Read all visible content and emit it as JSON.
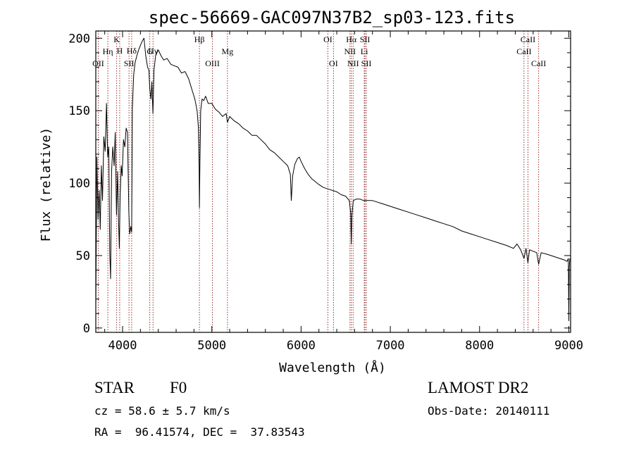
{
  "title": "spec-56669-GAC097N37B2_sp03-123.fits",
  "chart_data": {
    "type": "line",
    "xlabel": "Wavelength (Å)",
    "ylabel": "Flux (relative)",
    "xlim": [
      3700,
      9020
    ],
    "ylim": [
      -3,
      205
    ],
    "x_ticks": [
      4000,
      5000,
      6000,
      7000,
      8000,
      9000
    ],
    "y_ticks": [
      0,
      50,
      100,
      150,
      200
    ],
    "grid": false,
    "series": [
      {
        "points": [
          [
            3700,
            15
          ],
          [
            3712,
            118
          ],
          [
            3725,
            75
          ],
          [
            3738,
            95
          ],
          [
            3750,
            68
          ],
          [
            3762,
            112
          ],
          [
            3775,
            88
          ],
          [
            3790,
            132
          ],
          [
            3805,
            122
          ],
          [
            3820,
            155
          ],
          [
            3833,
            118
          ],
          [
            3845,
            125
          ],
          [
            3856,
            52
          ],
          [
            3866,
            34
          ],
          [
            3877,
            108
          ],
          [
            3890,
            125
          ],
          [
            3905,
            112
          ],
          [
            3918,
            135
          ],
          [
            3932,
            78
          ],
          [
            3945,
            108
          ],
          [
            3955,
            74
          ],
          [
            3964,
            55
          ],
          [
            3972,
            90
          ],
          [
            3985,
            112
          ],
          [
            3995,
            105
          ],
          [
            4010,
            130
          ],
          [
            4025,
            125
          ],
          [
            4040,
            138
          ],
          [
            4055,
            135
          ],
          [
            4070,
            80
          ],
          [
            4080,
            65
          ],
          [
            4092,
            70
          ],
          [
            4102,
            66
          ],
          [
            4110,
            152
          ],
          [
            4125,
            175
          ],
          [
            4140,
            183
          ],
          [
            4160,
            188
          ],
          [
            4180,
            192
          ],
          [
            4200,
            195
          ],
          [
            4220,
            198
          ],
          [
            4240,
            200
          ],
          [
            4260,
            188
          ],
          [
            4280,
            180
          ],
          [
            4295,
            178
          ],
          [
            4305,
            165
          ],
          [
            4318,
            158
          ],
          [
            4328,
            170
          ],
          [
            4340,
            148
          ],
          [
            4352,
            178
          ],
          [
            4370,
            188
          ],
          [
            4400,
            192
          ],
          [
            4430,
            188
          ],
          [
            4460,
            185
          ],
          [
            4500,
            186
          ],
          [
            4540,
            182
          ],
          [
            4580,
            181
          ],
          [
            4620,
            180
          ],
          [
            4660,
            176
          ],
          [
            4700,
            177
          ],
          [
            4740,
            172
          ],
          [
            4780,
            164
          ],
          [
            4810,
            158
          ],
          [
            4835,
            150
          ],
          [
            4850,
            138
          ],
          [
            4858,
            110
          ],
          [
            4861,
            83
          ],
          [
            4866,
            110
          ],
          [
            4875,
            150
          ],
          [
            4890,
            158
          ],
          [
            4910,
            157
          ],
          [
            4930,
            160
          ],
          [
            4960,
            155
          ],
          [
            5000,
            155
          ],
          [
            5040,
            151
          ],
          [
            5080,
            149
          ],
          [
            5120,
            146
          ],
          [
            5160,
            148
          ],
          [
            5175,
            142
          ],
          [
            5200,
            146
          ],
          [
            5250,
            143
          ],
          [
            5300,
            141
          ],
          [
            5350,
            138
          ],
          [
            5400,
            136
          ],
          [
            5450,
            133
          ],
          [
            5500,
            133
          ],
          [
            5550,
            130
          ],
          [
            5600,
            127
          ],
          [
            5650,
            123
          ],
          [
            5700,
            121
          ],
          [
            5750,
            118
          ],
          [
            5800,
            115
          ],
          [
            5850,
            112
          ],
          [
            5880,
            106
          ],
          [
            5890,
            88
          ],
          [
            5896,
            94
          ],
          [
            5905,
            105
          ],
          [
            5930,
            113
          ],
          [
            5960,
            117
          ],
          [
            5980,
            118
          ],
          [
            6000,
            115
          ],
          [
            6040,
            110
          ],
          [
            6080,
            106
          ],
          [
            6120,
            103
          ],
          [
            6160,
            101
          ],
          [
            6200,
            99
          ],
          [
            6250,
            97
          ],
          [
            6300,
            96
          ],
          [
            6350,
            95
          ],
          [
            6400,
            94
          ],
          [
            6450,
            92
          ],
          [
            6500,
            91
          ],
          [
            6540,
            88
          ],
          [
            6555,
            80
          ],
          [
            6563,
            58
          ],
          [
            6570,
            78
          ],
          [
            6585,
            88
          ],
          [
            6620,
            89
          ],
          [
            6660,
            89
          ],
          [
            6700,
            88
          ],
          [
            6750,
            88
          ],
          [
            6800,
            88
          ],
          [
            6850,
            87
          ],
          [
            6900,
            86
          ],
          [
            6950,
            85
          ],
          [
            7000,
            84
          ],
          [
            7100,
            82
          ],
          [
            7200,
            80
          ],
          [
            7300,
            78
          ],
          [
            7400,
            76
          ],
          [
            7500,
            74
          ],
          [
            7600,
            72
          ],
          [
            7700,
            70
          ],
          [
            7800,
            67
          ],
          [
            7900,
            65
          ],
          [
            8000,
            63
          ],
          [
            8100,
            61
          ],
          [
            8200,
            59
          ],
          [
            8300,
            57
          ],
          [
            8380,
            55
          ],
          [
            8420,
            58
          ],
          [
            8460,
            54
          ],
          [
            8498,
            48
          ],
          [
            8520,
            55
          ],
          [
            8542,
            45
          ],
          [
            8560,
            54
          ],
          [
            8600,
            53
          ],
          [
            8640,
            52
          ],
          [
            8662,
            44
          ],
          [
            8690,
            52
          ],
          [
            8750,
            51
          ],
          [
            8800,
            50
          ],
          [
            8850,
            49
          ],
          [
            8900,
            48
          ],
          [
            8950,
            47
          ],
          [
            8980,
            46
          ],
          [
            8995,
            48
          ],
          [
            9000,
            5
          ],
          [
            9005,
            42
          ],
          [
            9012,
            48
          ]
        ]
      }
    ],
    "line_markers": [
      {
        "label": "OII",
        "wl": 3727,
        "tier": 3
      },
      {
        "label": "Hη",
        "wl": 3835,
        "tier": 2
      },
      {
        "label": "K",
        "wl": 3934,
        "tier": 1
      },
      {
        "label": "H",
        "wl": 3968,
        "tier": 0
      },
      {
        "label": "SII",
        "wl": 4072,
        "tier": 3
      },
      {
        "label": "Hδ",
        "wl": 4102,
        "tier": 0
      },
      {
        "label": "G",
        "wl": 4305,
        "tier": 2
      },
      {
        "label": "Hγ",
        "wl": 4341,
        "tier": 0
      },
      {
        "label": "Hβ",
        "wl": 4861,
        "tier": 1
      },
      {
        "label": "OIII",
        "wl": 5007,
        "tier": 3
      },
      {
        "label": "Mg",
        "wl": 5175,
        "tier": 2
      },
      {
        "label": "OI",
        "wl": 6300,
        "tier": 1
      },
      {
        "label": "OI",
        "wl": 6363,
        "tier": 3
      },
      {
        "label": "NII",
        "wl": 6548,
        "tier": 2
      },
      {
        "label": "Hα",
        "wl": 6563,
        "tier": 1
      },
      {
        "label": "NII",
        "wl": 6583,
        "tier": 3
      },
      {
        "label": "Li",
        "wl": 6708,
        "tier": 2
      },
      {
        "label": "SII",
        "wl": 6716,
        "tier": 1
      },
      {
        "label": "SII",
        "wl": 6731,
        "tier": 3
      },
      {
        "label": "CaII",
        "wl": 8498,
        "tier": 2
      },
      {
        "label": "CaII",
        "wl": 8542,
        "tier": 1
      },
      {
        "label": "CaII",
        "wl": 8662,
        "tier": 3
      }
    ]
  },
  "info": {
    "class": "STAR",
    "subclass": "F0",
    "survey": "LAMOST DR2",
    "cz": "cz = 58.6 ± 5.7 km/s",
    "obs_date": "Obs-Date: 20140111",
    "coords": "RA =  96.41574, DEC =  37.83543"
  },
  "colors": {
    "spectrum": "#000000",
    "marker": "#8b1a1a",
    "background": "#ffffff"
  }
}
